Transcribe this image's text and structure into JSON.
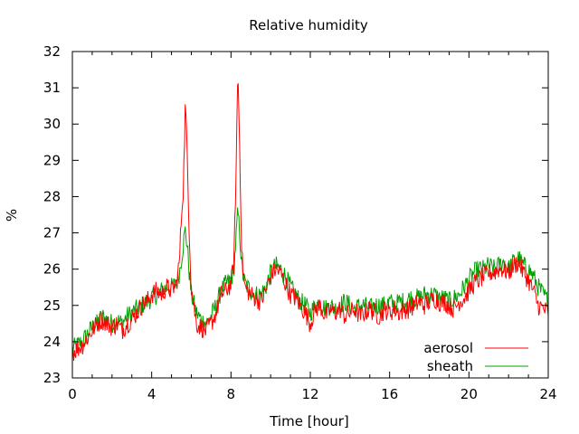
{
  "chart_data": {
    "type": "line",
    "title": "Relative humidity",
    "xlabel": "Time [hour]",
    "ylabel": "%",
    "xlim": [
      0,
      24
    ],
    "ylim": [
      23,
      32
    ],
    "xticks": [
      0,
      4,
      8,
      12,
      16,
      20,
      24
    ],
    "yticks": [
      23,
      24,
      25,
      26,
      27,
      28,
      29,
      30,
      31,
      32
    ],
    "grid": false,
    "legend_position": "bottom-right",
    "series": [
      {
        "name": "aerosol",
        "color": "#ff0000",
        "x": [
          0,
          0.25,
          0.5,
          0.75,
          1,
          1.25,
          1.5,
          1.75,
          2,
          2.25,
          2.5,
          2.75,
          3,
          3.25,
          3.5,
          3.75,
          4,
          4.25,
          4.5,
          4.75,
          5,
          5.25,
          5.4,
          5.5,
          5.6,
          5.7,
          5.8,
          5.9,
          6,
          6.25,
          6.5,
          6.75,
          7,
          7.25,
          7.5,
          7.75,
          8,
          8.15,
          8.25,
          8.35,
          8.45,
          8.55,
          8.7,
          9,
          9.25,
          9.5,
          9.75,
          10,
          10.25,
          10.5,
          10.75,
          11,
          11.25,
          11.5,
          11.75,
          12,
          12.25,
          12.5,
          12.75,
          13,
          13.25,
          13.5,
          13.75,
          14,
          14.25,
          14.5,
          14.75,
          15,
          15.25,
          15.5,
          15.75,
          16,
          16.25,
          16.5,
          16.75,
          17,
          17.25,
          17.5,
          17.75,
          18,
          18.25,
          18.5,
          18.75,
          19,
          19.25,
          19.5,
          19.75,
          20,
          20.25,
          20.5,
          20.75,
          21,
          21.25,
          21.5,
          21.75,
          22,
          22.25,
          22.5,
          22.75,
          23,
          23.25,
          23.5,
          23.75,
          24
        ],
        "y": [
          23.7,
          23.8,
          23.9,
          24.1,
          24.3,
          24.5,
          24.6,
          24.5,
          24.4,
          24.5,
          24.3,
          24.5,
          24.6,
          24.8,
          25.0,
          25.1,
          25.3,
          25.4,
          25.3,
          25.5,
          25.4,
          25.6,
          26.2,
          27.5,
          28.3,
          30.6,
          29.0,
          27.0,
          25.5,
          24.5,
          24.4,
          24.3,
          24.5,
          24.8,
          25.3,
          25.4,
          25.6,
          26.2,
          28.5,
          31.6,
          29.0,
          26.3,
          25.5,
          25.3,
          25.2,
          25.1,
          25.4,
          25.8,
          26.0,
          25.9,
          25.6,
          25.3,
          25.2,
          25.0,
          24.8,
          24.5,
          24.9,
          25.0,
          24.7,
          24.9,
          24.8,
          24.9,
          24.7,
          24.8,
          24.9,
          24.7,
          24.8,
          24.9,
          24.8,
          24.7,
          24.9,
          24.8,
          24.9,
          24.8,
          24.9,
          24.9,
          25.0,
          25.1,
          25.0,
          25.1,
          25.2,
          25.1,
          25.1,
          25.0,
          24.9,
          25.1,
          25.2,
          25.4,
          25.6,
          25.7,
          25.8,
          25.9,
          25.9,
          26.0,
          26.0,
          25.9,
          26.1,
          26.2,
          25.9,
          25.7,
          25.4,
          25.0,
          24.9,
          24.8
        ]
      },
      {
        "name": "sheath",
        "color": "#00a000",
        "x": [
          0,
          0.25,
          0.5,
          0.75,
          1,
          1.25,
          1.5,
          1.75,
          2,
          2.25,
          2.5,
          2.75,
          3,
          3.25,
          3.5,
          3.75,
          4,
          4.25,
          4.5,
          4.75,
          5,
          5.25,
          5.4,
          5.5,
          5.6,
          5.7,
          5.8,
          5.9,
          6,
          6.25,
          6.5,
          6.75,
          7,
          7.25,
          7.5,
          7.75,
          8,
          8.15,
          8.25,
          8.35,
          8.45,
          8.55,
          8.7,
          9,
          9.25,
          9.5,
          9.75,
          10,
          10.25,
          10.5,
          10.75,
          11,
          11.25,
          11.5,
          11.75,
          12,
          12.25,
          12.5,
          12.75,
          13,
          13.25,
          13.5,
          13.75,
          14,
          14.25,
          14.5,
          14.75,
          15,
          15.25,
          15.5,
          15.75,
          16,
          16.25,
          16.5,
          16.75,
          17,
          17.25,
          17.5,
          17.75,
          18,
          18.25,
          18.5,
          18.75,
          19,
          19.25,
          19.5,
          19.75,
          20,
          20.25,
          20.5,
          20.75,
          21,
          21.25,
          21.5,
          21.75,
          22,
          22.25,
          22.5,
          22.75,
          23,
          23.25,
          23.5,
          23.75,
          24
        ],
        "y": [
          23.8,
          23.9,
          24.0,
          24.2,
          24.4,
          24.5,
          24.7,
          24.6,
          24.5,
          24.6,
          24.5,
          24.7,
          24.8,
          24.9,
          25.0,
          25.1,
          25.2,
          25.3,
          25.4,
          25.5,
          25.5,
          25.6,
          25.9,
          26.3,
          26.7,
          27.1,
          26.6,
          25.9,
          25.3,
          24.8,
          24.6,
          24.5,
          24.7,
          25.0,
          25.4,
          25.6,
          25.7,
          26.0,
          26.8,
          27.6,
          26.9,
          26.0,
          25.6,
          25.4,
          25.3,
          25.3,
          25.5,
          25.9,
          26.1,
          26.0,
          25.8,
          25.5,
          25.3,
          25.1,
          25.0,
          24.8,
          25.0,
          25.1,
          24.9,
          25.0,
          24.9,
          25.0,
          25.1,
          25.0,
          24.9,
          25.0,
          25.0,
          24.9,
          25.0,
          25.0,
          25.0,
          25.1,
          25.0,
          25.1,
          25.1,
          25.2,
          25.2,
          25.2,
          25.3,
          25.3,
          25.3,
          25.2,
          25.2,
          25.1,
          25.2,
          25.3,
          25.5,
          25.7,
          25.9,
          26.0,
          26.0,
          26.1,
          26.0,
          26.1,
          26.2,
          26.0,
          26.2,
          26.3,
          26.1,
          26.0,
          25.8,
          25.5,
          25.3,
          25.1
        ]
      }
    ]
  }
}
